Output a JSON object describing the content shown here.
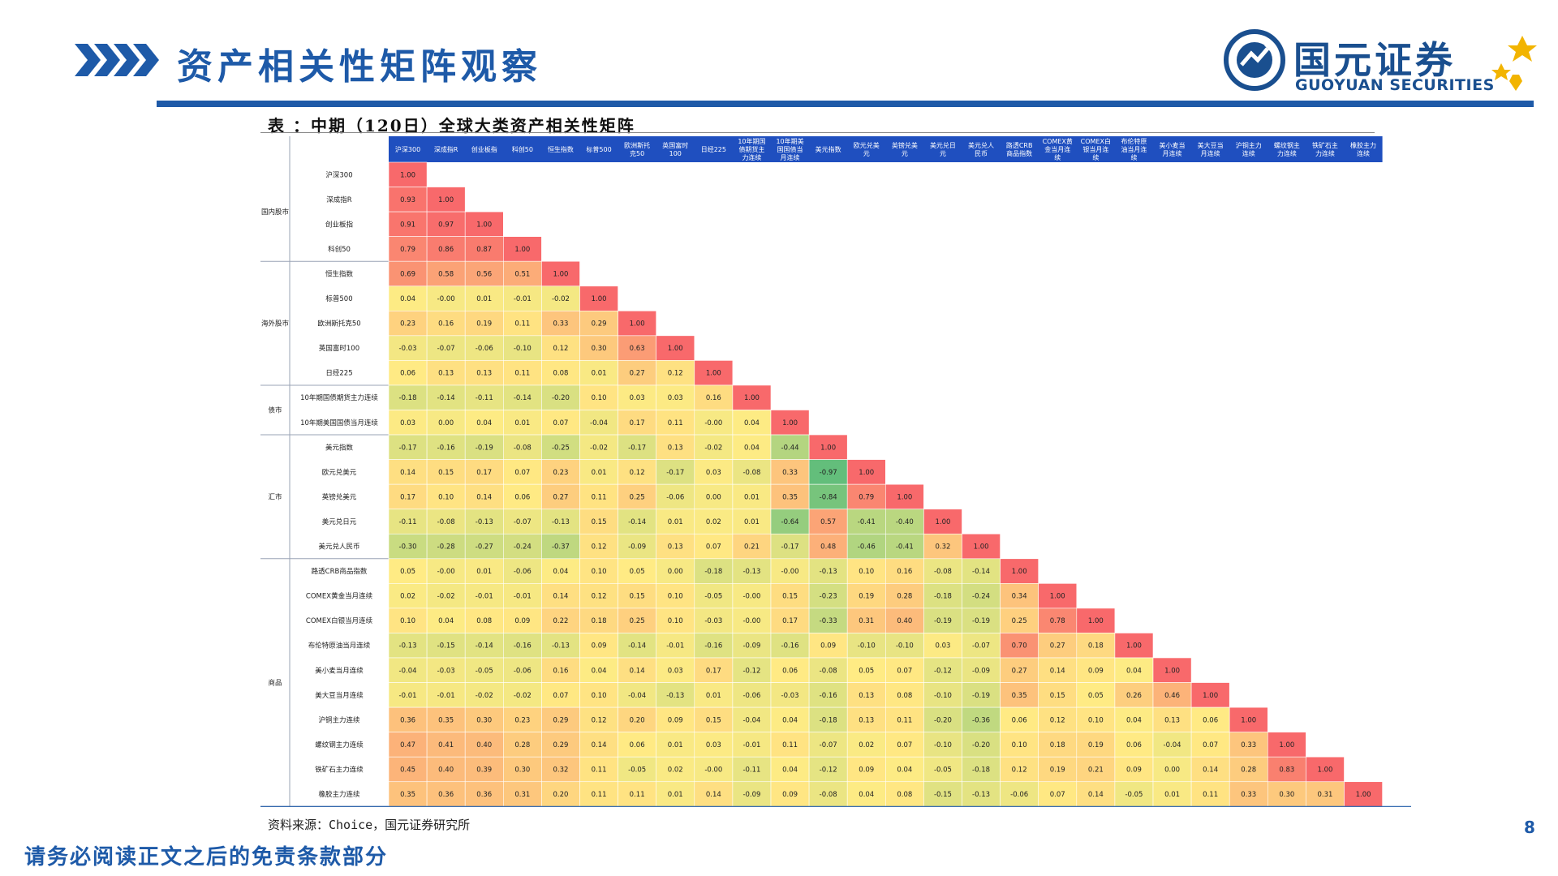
{
  "page": {
    "title": "资产相关性矩阵观察",
    "number": "8",
    "disclaimer": "请务必阅读正文之后的免责条款部分"
  },
  "logo": {
    "name_cn": "国元证券",
    "name_en": "GUOYUAN SECURITIES"
  },
  "colors": {
    "brand_blue": "#1e5aa8",
    "header_blue": "#1f4fbf",
    "high": "#f8696b",
    "mid": "#ffeb84",
    "low": "#63be7b"
  },
  "table": {
    "caption": "表 ：中期（120日）全球大类资产相关性矩阵",
    "source": "资料来源：Choice，国元证券研究所"
  },
  "chart_data": {
    "type": "heatmap",
    "title": "表 ：中期（120日）全球大类资产相关性矩阵",
    "columns": [
      "沪深300",
      "深成指R",
      "创业板指",
      "科创50",
      "恒生指数",
      "标普500",
      "欧洲斯托克50",
      "英国富时100",
      "日经225",
      "10年期国债期货主力连续",
      "10年期美国国债当月连续",
      "美元指数",
      "欧元兑美元",
      "英镑兑美元",
      "美元兑日元",
      "美元兑人民币",
      "路透CRB商品指数",
      "COMEX黄金当月连续",
      "COMEX白银当月连续",
      "布伦特原油当月连续",
      "美小麦当月连续",
      "美大豆当月连续",
      "沪铜主力连续",
      "螺纹钢主力连续",
      "铁矿石主力连续",
      "橡胶主力连续"
    ],
    "rows": [
      "沪深300",
      "深成指R",
      "创业板指",
      "科创50",
      "恒生指数",
      "标普500",
      "欧洲斯托克50",
      "英国富时100",
      "日经225",
      "10年期国债期货主力连续",
      "10年期美国国债当月连续",
      "美元指数",
      "欧元兑美元",
      "英镑兑美元",
      "美元兑日元",
      "美元兑人民币",
      "路透CRB商品指数",
      "COMEX黄金当月连续",
      "COMEX白银当月连续",
      "布伦特原油当月连续",
      "美小麦当月连续",
      "美大豆当月连续",
      "沪铜主力连续",
      "螺纹钢主力连续",
      "铁矿石主力连续",
      "橡胶主力连续"
    ],
    "groups": [
      {
        "name": "国内股市",
        "start": 0,
        "end": 3
      },
      {
        "name": "海外股市",
        "start": 4,
        "end": 8
      },
      {
        "name": "债市",
        "start": 9,
        "end": 10
      },
      {
        "name": "汇市",
        "start": 11,
        "end": 15
      },
      {
        "name": "商品",
        "start": 16,
        "end": 25
      }
    ],
    "values": [
      [
        "1.00"
      ],
      [
        "0.93",
        "1.00"
      ],
      [
        "0.91",
        "0.97",
        "1.00"
      ],
      [
        "0.79",
        "0.86",
        "0.87",
        "1.00"
      ],
      [
        "0.69",
        "0.58",
        "0.56",
        "0.51",
        "1.00"
      ],
      [
        "0.04",
        "-0.00",
        "0.01",
        "-0.01",
        "-0.02",
        "1.00"
      ],
      [
        "0.23",
        "0.16",
        "0.19",
        "0.11",
        "0.33",
        "0.29",
        "1.00"
      ],
      [
        "-0.03",
        "-0.07",
        "-0.06",
        "-0.10",
        "0.12",
        "0.30",
        "0.63",
        "1.00"
      ],
      [
        "0.06",
        "0.13",
        "0.13",
        "0.11",
        "0.08",
        "0.01",
        "0.27",
        "0.12",
        "1.00"
      ],
      [
        "-0.18",
        "-0.14",
        "-0.11",
        "-0.14",
        "-0.20",
        "0.10",
        "0.03",
        "0.03",
        "0.16",
        "1.00"
      ],
      [
        "0.03",
        "0.00",
        "0.04",
        "0.01",
        "0.07",
        "-0.04",
        "0.17",
        "0.11",
        "-0.00",
        "0.04",
        "1.00"
      ],
      [
        "-0.17",
        "-0.16",
        "-0.19",
        "-0.08",
        "-0.25",
        "-0.02",
        "-0.17",
        "0.13",
        "-0.02",
        "0.04",
        "-0.44",
        "1.00"
      ],
      [
        "0.14",
        "0.15",
        "0.17",
        "0.07",
        "0.23",
        "0.01",
        "0.12",
        "-0.17",
        "0.03",
        "-0.08",
        "0.33",
        "-0.97",
        "1.00"
      ],
      [
        "0.17",
        "0.10",
        "0.14",
        "0.06",
        "0.27",
        "0.11",
        "0.25",
        "-0.06",
        "0.00",
        "0.01",
        "0.35",
        "-0.84",
        "0.79",
        "1.00"
      ],
      [
        "-0.11",
        "-0.08",
        "-0.13",
        "-0.07",
        "-0.13",
        "0.15",
        "-0.14",
        "0.01",
        "0.02",
        "0.01",
        "-0.64",
        "0.57",
        "-0.41",
        "-0.40",
        "1.00"
      ],
      [
        "-0.30",
        "-0.28",
        "-0.27",
        "-0.24",
        "-0.37",
        "0.12",
        "-0.09",
        "0.13",
        "0.07",
        "0.21",
        "-0.17",
        "0.48",
        "-0.46",
        "-0.41",
        "0.32",
        "1.00"
      ],
      [
        "0.05",
        "-0.00",
        "0.01",
        "-0.06",
        "0.04",
        "0.10",
        "0.05",
        "0.00",
        "-0.18",
        "-0.13",
        "-0.00",
        "-0.13",
        "0.10",
        "0.16",
        "-0.08",
        "-0.14",
        "1.00"
      ],
      [
        "0.02",
        "-0.02",
        "-0.01",
        "-0.01",
        "0.14",
        "0.12",
        "0.15",
        "0.10",
        "-0.05",
        "-0.00",
        "0.15",
        "-0.23",
        "0.19",
        "0.28",
        "-0.18",
        "-0.24",
        "0.34",
        "1.00"
      ],
      [
        "0.10",
        "0.04",
        "0.08",
        "0.09",
        "0.22",
        "0.18",
        "0.25",
        "0.10",
        "-0.03",
        "-0.00",
        "0.17",
        "-0.33",
        "0.31",
        "0.40",
        "-0.19",
        "-0.19",
        "0.25",
        "0.78",
        "1.00"
      ],
      [
        "-0.13",
        "-0.15",
        "-0.14",
        "-0.16",
        "-0.13",
        "0.09",
        "-0.14",
        "-0.01",
        "-0.16",
        "-0.09",
        "-0.16",
        "0.09",
        "-0.10",
        "-0.10",
        "0.03",
        "-0.07",
        "0.70",
        "0.27",
        "0.18",
        "1.00"
      ],
      [
        "-0.04",
        "-0.03",
        "-0.05",
        "-0.06",
        "0.16",
        "0.04",
        "0.14",
        "0.03",
        "0.17",
        "-0.12",
        "0.06",
        "-0.08",
        "0.05",
        "0.07",
        "-0.12",
        "-0.09",
        "0.27",
        "0.14",
        "0.09",
        "0.04",
        "1.00"
      ],
      [
        "-0.01",
        "-0.01",
        "-0.02",
        "-0.02",
        "0.07",
        "0.10",
        "-0.04",
        "-0.13",
        "0.01",
        "-0.06",
        "-0.03",
        "-0.16",
        "0.13",
        "0.08",
        "-0.10",
        "-0.19",
        "0.35",
        "0.15",
        "0.05",
        "0.26",
        "0.46",
        "1.00"
      ],
      [
        "0.36",
        "0.35",
        "0.30",
        "0.23",
        "0.29",
        "0.12",
        "0.20",
        "0.09",
        "0.15",
        "-0.04",
        "0.04",
        "-0.18",
        "0.13",
        "0.11",
        "-0.20",
        "-0.36",
        "0.06",
        "0.12",
        "0.10",
        "0.04",
        "0.13",
        "0.06",
        "1.00"
      ],
      [
        "0.47",
        "0.41",
        "0.40",
        "0.28",
        "0.29",
        "0.14",
        "0.06",
        "0.01",
        "0.03",
        "-0.01",
        "0.11",
        "-0.07",
        "0.02",
        "0.07",
        "-0.10",
        "-0.20",
        "0.10",
        "0.18",
        "0.19",
        "0.06",
        "-0.04",
        "0.07",
        "0.33",
        "1.00"
      ],
      [
        "0.45",
        "0.40",
        "0.39",
        "0.30",
        "0.32",
        "0.11",
        "-0.05",
        "0.02",
        "-0.00",
        "-0.11",
        "0.04",
        "-0.12",
        "0.09",
        "0.04",
        "-0.05",
        "-0.18",
        "0.12",
        "0.19",
        "0.21",
        "0.09",
        "0.00",
        "0.14",
        "0.28",
        "0.83",
        "1.00"
      ],
      [
        "0.35",
        "0.36",
        "0.36",
        "0.31",
        "0.20",
        "0.11",
        "0.11",
        "0.01",
        "0.14",
        "-0.09",
        "0.09",
        "-0.08",
        "0.04",
        "0.08",
        "-0.15",
        "-0.13",
        "-0.06",
        "0.07",
        "0.14",
        "-0.05",
        "0.01",
        "0.11",
        "0.33",
        "0.30",
        "0.31",
        "1.00"
      ]
    ]
  }
}
